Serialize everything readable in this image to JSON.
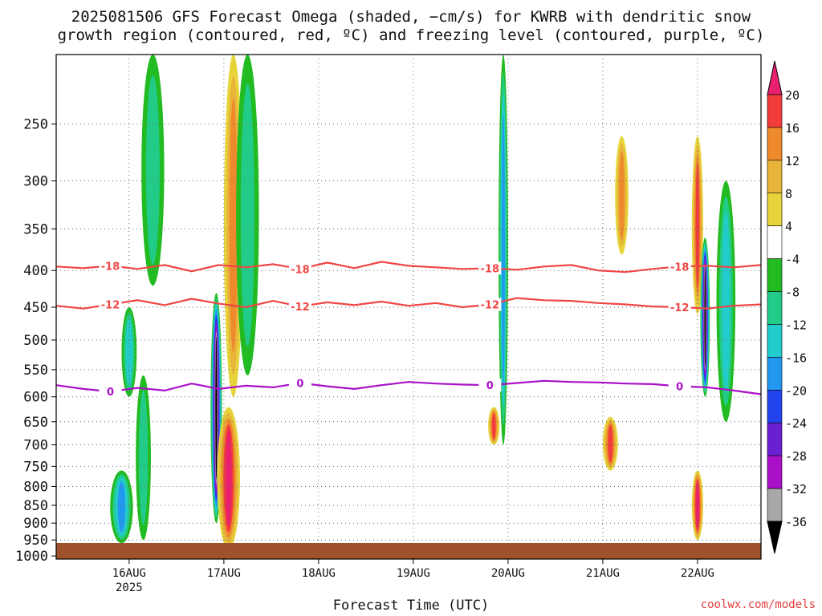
{
  "title_line1": "2025081506 GFS Forecast Omega (shaded, −cm/s) for KWRB with dendritic snow",
  "title_line2": "growth region (contoured, red, ºC) and freezing level (contoured, purple, ºC)",
  "credit": "coolwx.com/models",
  "chart_data": {
    "type": "heatmap",
    "xlabel": "Forecast Time (UTC)",
    "x_ticks": [
      "16AUG",
      "17AUG",
      "18AUG",
      "19AUG",
      "20AUG",
      "21AUG",
      "22AUG"
    ],
    "x_year_label": "2025",
    "x_range_days": [
      -0.77,
      6.67
    ],
    "y_ticks": [
      250,
      300,
      350,
      400,
      450,
      500,
      550,
      600,
      650,
      700,
      750,
      800,
      850,
      900,
      950,
      1000
    ],
    "y_range_hPa": [
      200,
      1010
    ],
    "y_scale": "log-pressure",
    "grid": true,
    "colorbar": {
      "levels": [
        20,
        16,
        12,
        8,
        4,
        -4,
        -8,
        -12,
        -16,
        -20,
        -24,
        -28,
        -32,
        -36
      ],
      "colors": [
        "#e8206e",
        "#f23c3c",
        "#ee8a2b",
        "#e8b43a",
        "#e6d43a",
        "#ffffff",
        "#22bb22",
        "#22cc88",
        "#22cccc",
        "#2299ee",
        "#2244ee",
        "#6a1fd0",
        "#aa10c8",
        "#a8a8a8",
        "#000000"
      ]
    },
    "contours": [
      {
        "level": "-18",
        "color": "#f04545",
        "pressure": [
          395,
          397,
          394,
          398,
          393,
          401,
          393,
          396,
          392,
          398,
          390,
          397,
          389,
          394,
          396,
          398,
          397,
          399,
          395,
          393,
          400,
          402,
          398,
          395,
          394,
          396,
          393
        ]
      },
      {
        "level": "-12",
        "color": "#f04545",
        "pressure": [
          448,
          452,
          446,
          440,
          447,
          438,
          445,
          450,
          441,
          449,
          443,
          447,
          442,
          448,
          444,
          450,
          446,
          437,
          440,
          441,
          444,
          446,
          449,
          450,
          452,
          448,
          446
        ]
      },
      {
        "level": "0",
        "color": "#aa10c8",
        "pressure": [
          578,
          585,
          590,
          583,
          588,
          575,
          585,
          579,
          582,
          574,
          580,
          585,
          578,
          572,
          575,
          577,
          578,
          574,
          570,
          572,
          573,
          575,
          576,
          580,
          582,
          588,
          595
        ]
      }
    ],
    "omega_blobs": [
      {
        "day": -0.08,
        "p_top": 760,
        "p_bot": 960,
        "width": 0.12,
        "peak": -18
      },
      {
        "day": -0.0,
        "p_top": 450,
        "p_bot": 600,
        "width": 0.08,
        "peak": -14
      },
      {
        "day": 0.15,
        "p_top": 560,
        "p_bot": 950,
        "width": 0.08,
        "peak": -10
      },
      {
        "day": 0.25,
        "p_top": 200,
        "p_bot": 420,
        "width": 0.12,
        "peak": -8
      },
      {
        "day": 0.92,
        "p_top": 430,
        "p_bot": 900,
        "width": 0.06,
        "peak": -36
      },
      {
        "day": 1.05,
        "p_top": 620,
        "p_bot": 980,
        "width": 0.12,
        "peak": 20
      },
      {
        "day": 1.1,
        "p_top": 200,
        "p_bot": 600,
        "width": 0.1,
        "peak": 12
      },
      {
        "day": 1.25,
        "p_top": 200,
        "p_bot": 560,
        "width": 0.12,
        "peak": -8
      },
      {
        "day": 3.95,
        "p_top": 200,
        "p_bot": 700,
        "width": 0.05,
        "peak": -16
      },
      {
        "day": 3.85,
        "p_top": 620,
        "p_bot": 700,
        "width": 0.06,
        "peak": 16
      },
      {
        "day": 5.08,
        "p_top": 640,
        "p_bot": 760,
        "width": 0.08,
        "peak": 16
      },
      {
        "day": 5.2,
        "p_top": 260,
        "p_bot": 380,
        "width": 0.07,
        "peak": 12
      },
      {
        "day": 6.0,
        "p_top": 260,
        "p_bot": 460,
        "width": 0.06,
        "peak": 16
      },
      {
        "day": 6.08,
        "p_top": 360,
        "p_bot": 600,
        "width": 0.05,
        "peak": -36
      },
      {
        "day": 6.0,
        "p_top": 760,
        "p_bot": 950,
        "width": 0.06,
        "peak": 20
      },
      {
        "day": 6.3,
        "p_top": 300,
        "p_bot": 650,
        "width": 0.1,
        "peak": -12
      }
    ]
  }
}
